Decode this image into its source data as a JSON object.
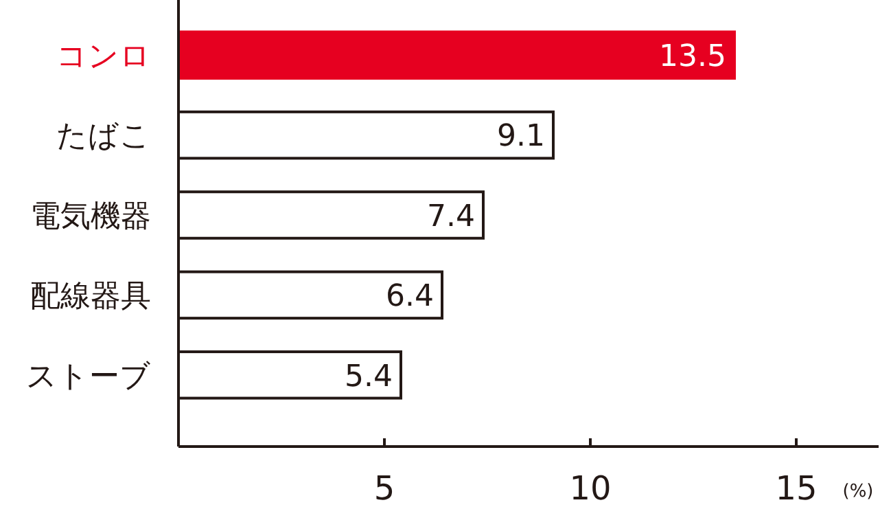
{
  "chart_data": {
    "type": "bar",
    "orientation": "horizontal",
    "categories": [
      "コンロ",
      "たばこ",
      "電気機器",
      "配線器具",
      "ストーブ"
    ],
    "values": [
      13.5,
      9.1,
      7.4,
      6.4,
      5.4
    ],
    "colors": [
      "#e60020",
      "#ffffff",
      "#ffffff",
      "#ffffff",
      "#ffffff"
    ],
    "xlim": [
      0,
      17
    ],
    "xticks": [
      5,
      10,
      15
    ],
    "xlabel": "(%)",
    "data_labels": true
  }
}
